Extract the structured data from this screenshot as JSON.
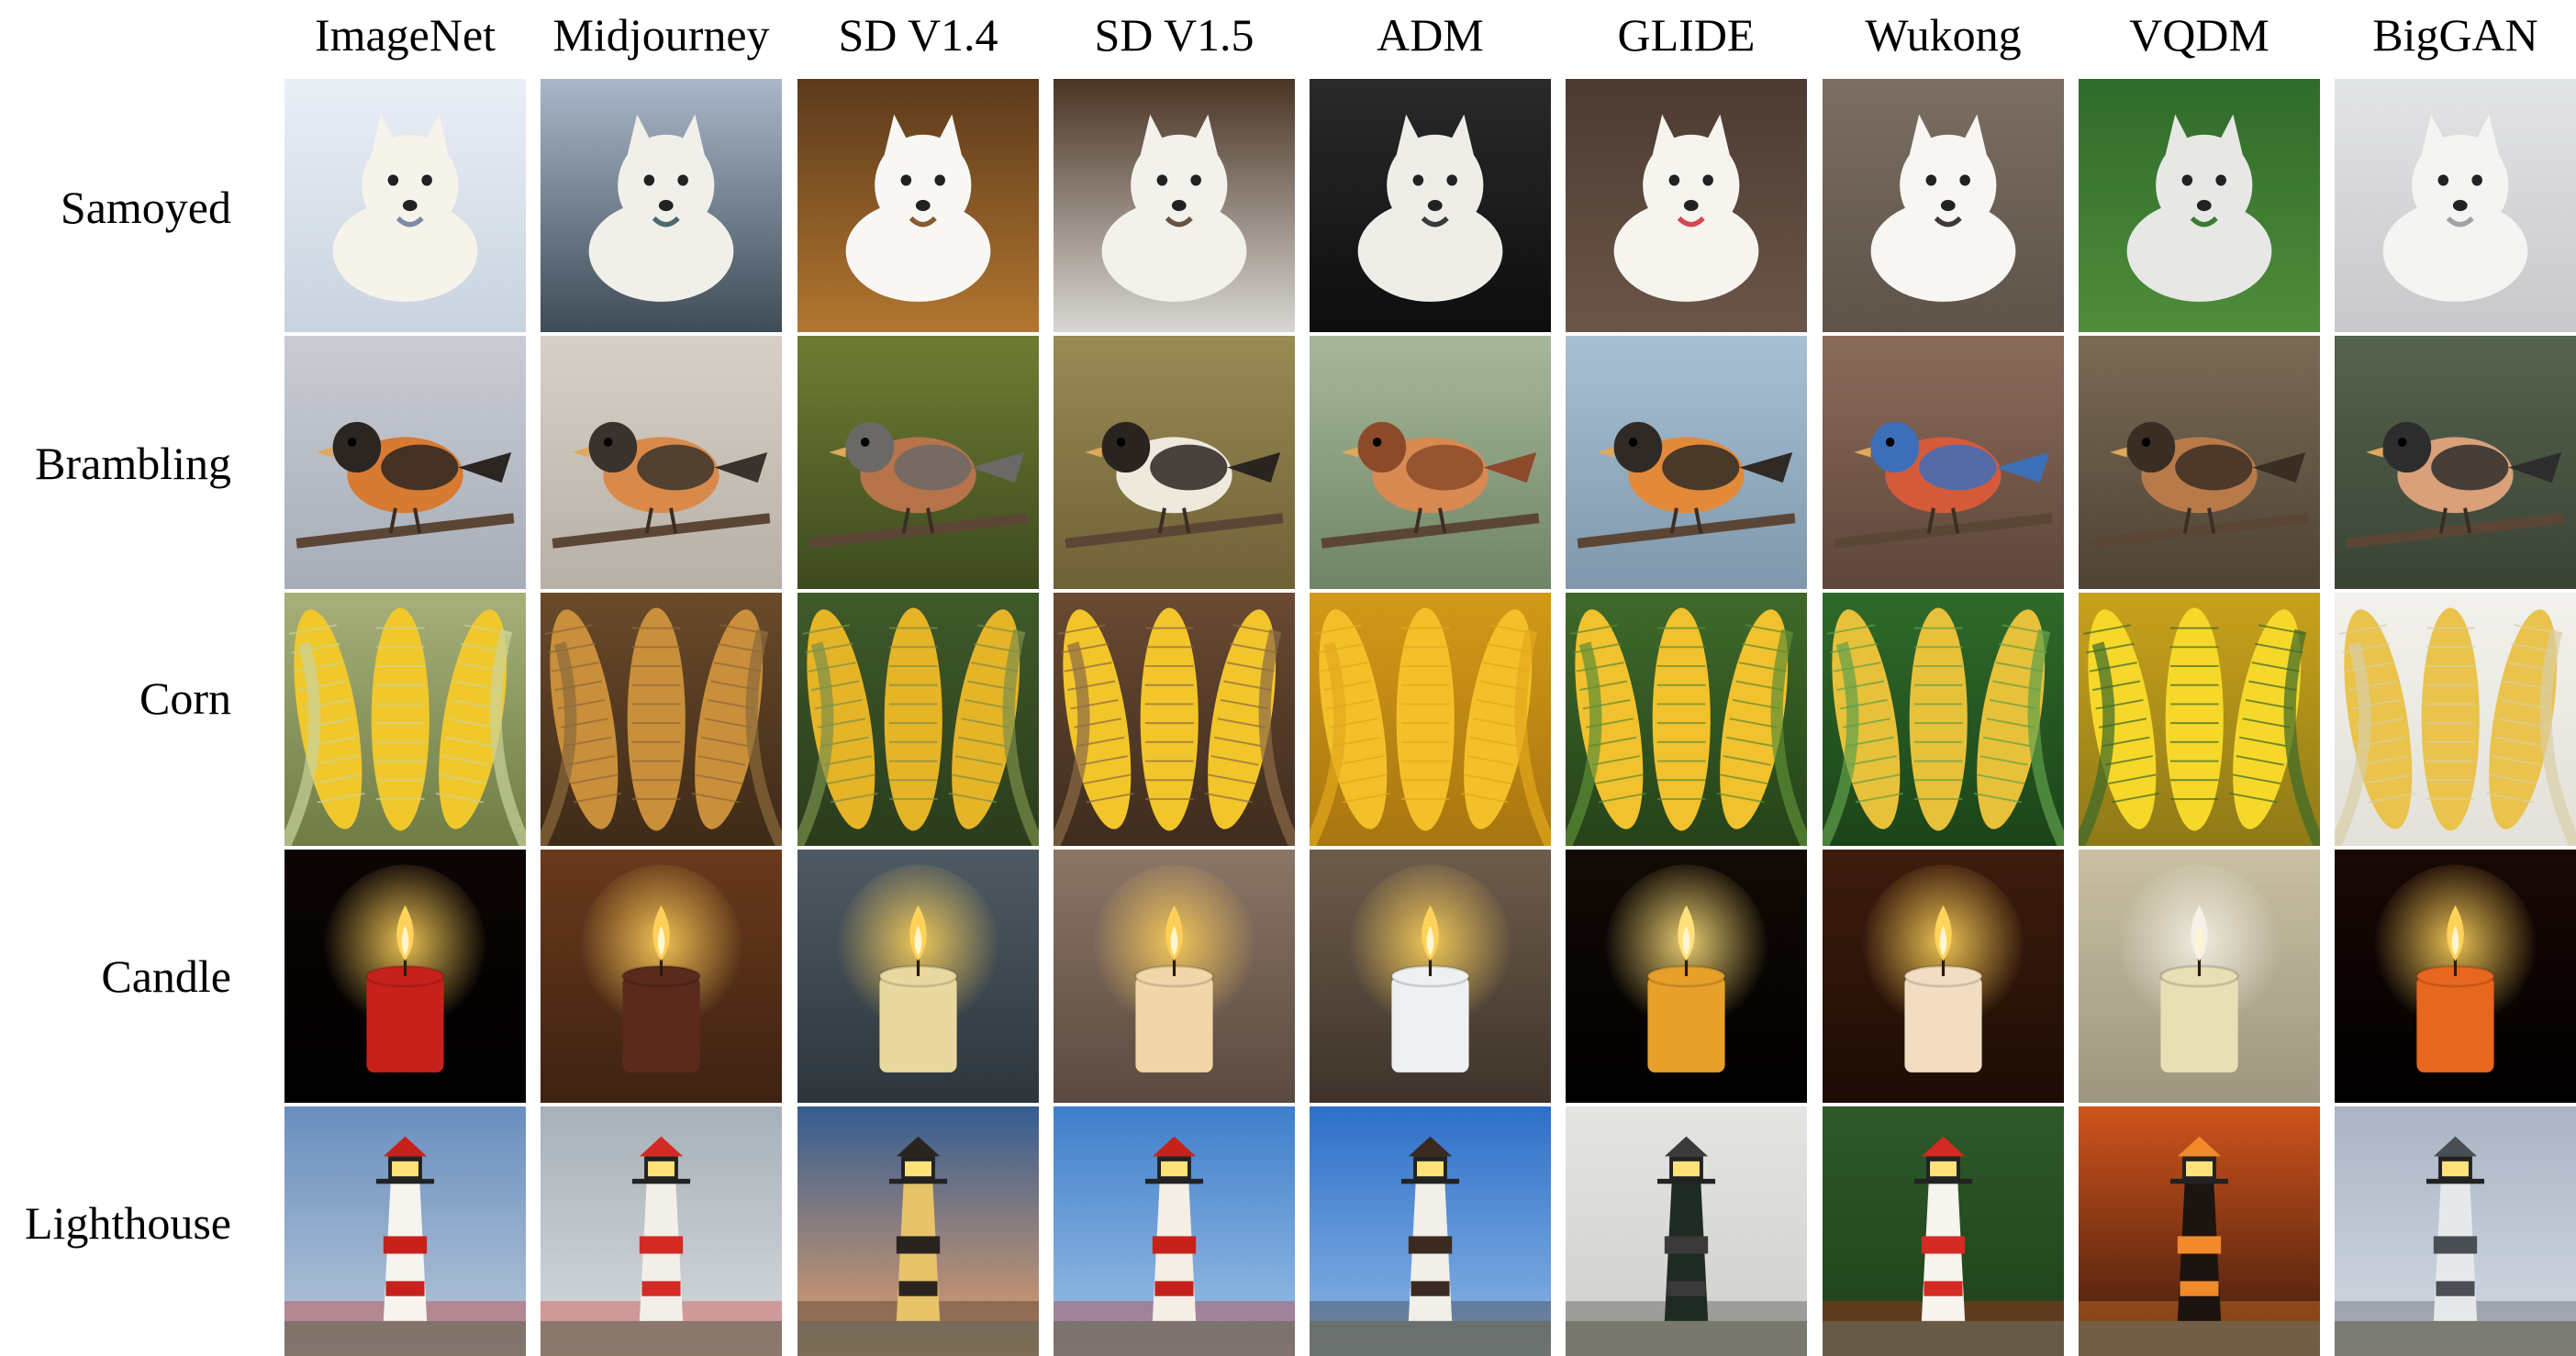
{
  "columns": [
    "ImageNet",
    "Midjourney",
    "SD V1.4",
    "SD V1.5",
    "ADM",
    "GLIDE",
    "Wukong",
    "VQDM",
    "BigGAN"
  ],
  "rows": [
    {
      "label": "Samoyed",
      "subject": "dog",
      "cells": [
        {
          "bg": [
            "#eaeff6",
            "#c9d3df"
          ],
          "fg": "#f6f3ea",
          "accent": "#7a8ca3"
        },
        {
          "bg": [
            "#a9b7c9",
            "#3f4b57"
          ],
          "fg": "#f1efea",
          "accent": "#4d6a6f"
        },
        {
          "bg": [
            "#5b3a1c",
            "#b2762f"
          ],
          "fg": "#f8f7f4",
          "accent": "#8a5b2e"
        },
        {
          "bg": [
            "#4a3424",
            "#d8d6d2"
          ],
          "fg": "#f3f1ec",
          "accent": "#6b5240"
        },
        {
          "bg": [
            "#2a2a2a",
            "#0d0d0d"
          ],
          "fg": "#efede8",
          "accent": "#3a3a3a"
        },
        {
          "bg": [
            "#4c3b32",
            "#6b5548"
          ],
          "fg": "#f6f4ef",
          "accent": "#d0494e"
        },
        {
          "bg": [
            "#7b6e62",
            "#5e5349"
          ],
          "fg": "#f7f6f3",
          "accent": "#3d3a35"
        },
        {
          "bg": [
            "#2f6b2a",
            "#4f8d3a"
          ],
          "fg": "#e7e8e6",
          "accent": "#3c7c32"
        },
        {
          "bg": [
            "#e3e4e6",
            "#c8c8ca"
          ],
          "fg": "#f4f4f2",
          "accent": "#a1a3a6"
        }
      ]
    },
    {
      "label": "Brambling",
      "subject": "bird",
      "cells": [
        {
          "bg": [
            "#c9ccd3",
            "#a7adb8"
          ],
          "fg": "#d77a32",
          "accent": "#2b2622"
        },
        {
          "bg": [
            "#d7d0c6",
            "#b7b0a7"
          ],
          "fg": "#d98a4a",
          "accent": "#3a332d"
        },
        {
          "bg": [
            "#6e7d33",
            "#3d4a1f"
          ],
          "fg": "#b7744a",
          "accent": "#6b6966"
        },
        {
          "bg": [
            "#9a8a55",
            "#6f6136"
          ],
          "fg": "#efe8dd",
          "accent": "#2a2421"
        },
        {
          "bg": [
            "#a7b89a",
            "#6f8565"
          ],
          "fg": "#d88a52",
          "accent": "#8c4a2a"
        },
        {
          "bg": [
            "#a9c0d2",
            "#7f98ad"
          ],
          "fg": "#e28a3a",
          "accent": "#2f2a26"
        },
        {
          "bg": [
            "#8a6b5a",
            "#5e463b"
          ],
          "fg": "#d55a3a",
          "accent": "#3d6fb8"
        },
        {
          "bg": [
            "#7a6a55",
            "#4e4335"
          ],
          "fg": "#b97a4a",
          "accent": "#3a2e24"
        },
        {
          "bg": [
            "#55624c",
            "#3a4436"
          ],
          "fg": "#d9a07a",
          "accent": "#2d2d2d"
        }
      ]
    },
    {
      "label": "Corn",
      "subject": "corn",
      "cells": [
        {
          "bg": [
            "#a7b07a",
            "#6f7c45"
          ],
          "fg": "#f0c82c",
          "accent": "#c9d39a"
        },
        {
          "bg": [
            "#6a4a2a",
            "#3e2a18"
          ],
          "fg": "#c98f3a",
          "accent": "#8a6a3a"
        },
        {
          "bg": [
            "#3f5a2a",
            "#2a3c1c"
          ],
          "fg": "#e6b427",
          "accent": "#7a8f4a"
        },
        {
          "bg": [
            "#6a4a32",
            "#3e2c1e"
          ],
          "fg": "#f2c52b",
          "accent": "#8c6a46"
        },
        {
          "bg": [
            "#d29a18",
            "#a97510"
          ],
          "fg": "#f4c02a",
          "accent": "#e2a81c"
        },
        {
          "bg": [
            "#3f6a2a",
            "#254219"
          ],
          "fg": "#f1c22d",
          "accent": "#5c8d35"
        },
        {
          "bg": [
            "#2f6a2a",
            "#1c4419"
          ],
          "fg": "#e8c13a",
          "accent": "#5fa04a"
        },
        {
          "bg": [
            "#caa21a",
            "#8e7a18"
          ],
          "fg": "#f6d82a",
          "accent": "#3a6a2a"
        },
        {
          "bg": [
            "#f2f1ec",
            "#e3e1d9"
          ],
          "fg": "#e9c34c",
          "accent": "#d8cfa6"
        }
      ]
    },
    {
      "label": "Candle",
      "subject": "candle",
      "cells": [
        {
          "bg": [
            "#0d0505",
            "#000000"
          ],
          "fg": "#c7211c",
          "accent": "#ffd35a"
        },
        {
          "bg": [
            "#6a3a1c",
            "#3e2212"
          ],
          "fg": "#5a2a1c",
          "accent": "#ffcf5a"
        },
        {
          "bg": [
            "#4e5a63",
            "#2e363c"
          ],
          "fg": "#e9d9a0",
          "accent": "#ffd35a"
        },
        {
          "bg": [
            "#8b7566",
            "#5a4a40"
          ],
          "fg": "#f1d6a8",
          "accent": "#ffcf5a"
        },
        {
          "bg": [
            "#6e5c4b",
            "#3e342b"
          ],
          "fg": "#eef1f2",
          "accent": "#ffd35a"
        },
        {
          "bg": [
            "#120a05",
            "#000000"
          ],
          "fg": "#e7a02a",
          "accent": "#ffe07a"
        },
        {
          "bg": [
            "#3e1c0d",
            "#1c0c05"
          ],
          "fg": "#f2ddc2",
          "accent": "#ffd35a"
        },
        {
          "bg": [
            "#c9bfa2",
            "#9d9780"
          ],
          "fg": "#e9dfb4",
          "accent": "#f5f1e6"
        },
        {
          "bg": [
            "#1a0805",
            "#000000"
          ],
          "fg": "#e8671f",
          "accent": "#ffd35a"
        }
      ]
    },
    {
      "label": "Lighthouse",
      "subject": "lighthouse",
      "cells": [
        {
          "bg": [
            "#6a8fbf",
            "#b8c8d8"
          ],
          "fg": "#f6f4ef",
          "accent": "#c7211c"
        },
        {
          "bg": [
            "#a7b0b8",
            "#d7dbde"
          ],
          "fg": "#f2efe8",
          "accent": "#d32a24"
        },
        {
          "bg": [
            "#355d92",
            "#e6a06a"
          ],
          "fg": "#e7c36a",
          "accent": "#2a2420"
        },
        {
          "bg": [
            "#3f7ecb",
            "#9fc3e6"
          ],
          "fg": "#f4eee4",
          "accent": "#c7211c"
        },
        {
          "bg": [
            "#2d6fc9",
            "#8fb8e6"
          ],
          "fg": "#f1efe8",
          "accent": "#3a2a22"
        },
        {
          "bg": [
            "#e4e4e2",
            "#cfcfcc"
          ],
          "fg": "#1f2a22",
          "accent": "#3a3a3a"
        },
        {
          "bg": [
            "#2e5a2a",
            "#1f4019"
          ],
          "fg": "#f6f4ef",
          "accent": "#d32a24"
        },
        {
          "bg": [
            "#d0531c",
            "#3a1a0d"
          ],
          "fg": "#1c1410",
          "accent": "#f08a2a"
        },
        {
          "bg": [
            "#a9b4c4",
            "#d5dbe4"
          ],
          "fg": "#e6e8ea",
          "accent": "#4a4e55"
        }
      ]
    }
  ]
}
